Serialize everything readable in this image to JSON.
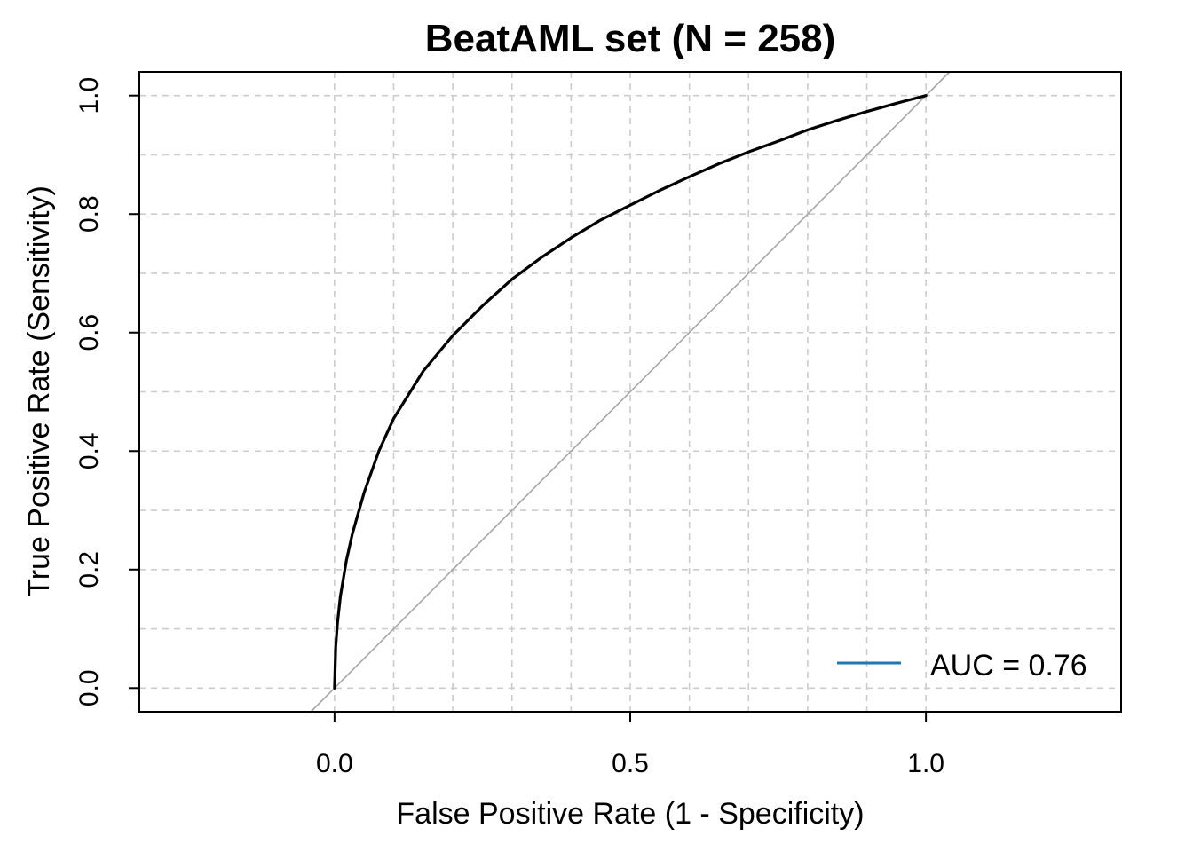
{
  "chart_data": {
    "type": "line",
    "title": "BeatAML set (N = 258)",
    "xlabel": "False Positive Rate (1 - Specificity)",
    "ylabel": "True Positive Rate (Sensitivity)",
    "xlim": [
      -0.33,
      1.33
    ],
    "ylim": [
      -0.04,
      1.04
    ],
    "x_ticks": [
      0.0,
      0.5,
      1.0
    ],
    "x_tick_labels": [
      "0.0",
      "0.5",
      "1.0"
    ],
    "y_ticks": [
      0.0,
      0.2,
      0.4,
      0.6,
      0.8,
      1.0
    ],
    "y_tick_labels": [
      "0.0",
      "0.2",
      "0.4",
      "0.6",
      "0.8",
      "1.0"
    ],
    "grid": true,
    "grid_x": [
      0.0,
      0.1,
      0.2,
      0.3,
      0.4,
      0.5,
      0.6,
      0.7,
      0.8,
      0.9,
      1.0
    ],
    "grid_y": [
      0.0,
      0.1,
      0.2,
      0.3,
      0.4,
      0.5,
      0.6,
      0.7,
      0.8,
      0.9,
      1.0
    ],
    "reference_line": {
      "color": "#a6a6a6",
      "x": [
        -0.04,
        1.04
      ],
      "y": [
        -0.04,
        1.04
      ]
    },
    "series": [
      {
        "color": "#000000",
        "x": [
          0.0,
          0.002,
          0.005,
          0.01,
          0.02,
          0.03,
          0.05,
          0.075,
          0.1,
          0.15,
          0.2,
          0.25,
          0.3,
          0.35,
          0.4,
          0.45,
          0.5,
          0.55,
          0.6,
          0.65,
          0.7,
          0.75,
          0.8,
          0.85,
          0.9,
          0.95,
          1.0
        ],
        "y": [
          0.0,
          0.07,
          0.11,
          0.155,
          0.215,
          0.26,
          0.33,
          0.4,
          0.455,
          0.535,
          0.595,
          0.645,
          0.69,
          0.727,
          0.76,
          0.79,
          0.815,
          0.84,
          0.863,
          0.885,
          0.905,
          0.923,
          0.942,
          0.958,
          0.973,
          0.987,
          1.0
        ]
      }
    ],
    "legend": {
      "position": "bottom-right",
      "entries": [
        {
          "label": "AUC = 0.76",
          "color": "#1f77b4"
        }
      ]
    }
  }
}
